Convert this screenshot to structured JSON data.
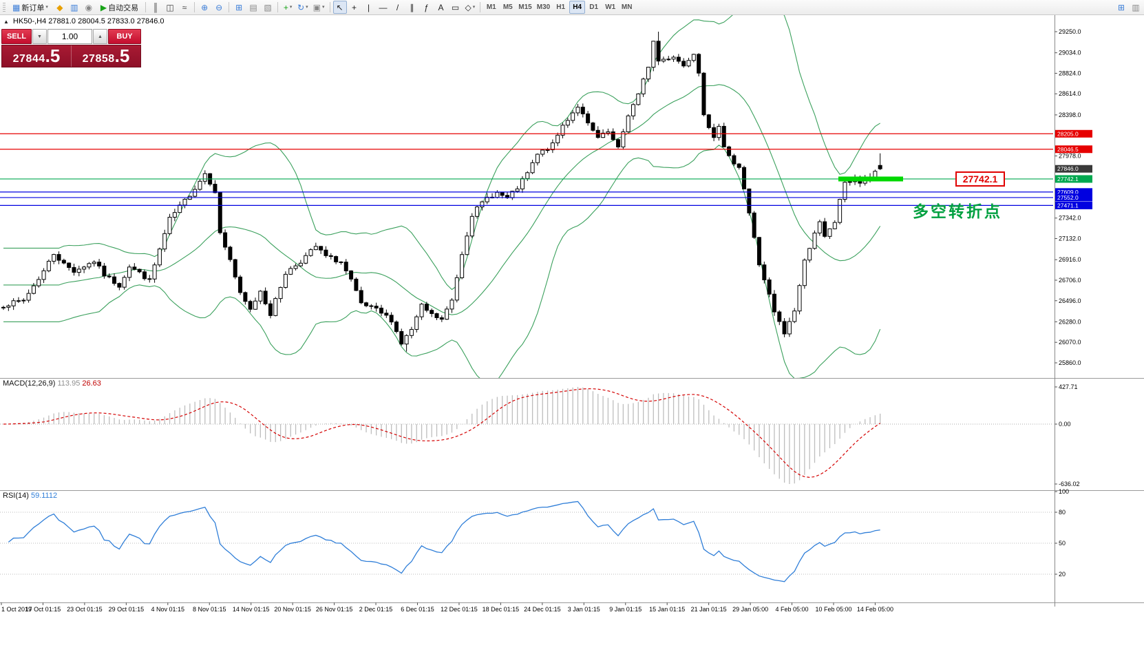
{
  "toolbar": {
    "groups": [
      {
        "items": [
          {
            "name": "new-order-button",
            "glyph": "▦",
            "color": "#3b7dd8",
            "label": "新订单",
            "dropdown": true
          },
          {
            "name": "market-button",
            "glyph": "◆",
            "color": "#e8a000"
          },
          {
            "name": "profiles-button",
            "glyph": "▥",
            "color": "#3b7dd8"
          },
          {
            "name": "data-window-button",
            "glyph": "◉",
            "color": "#888888"
          },
          {
            "name": "auto-trading-button",
            "glyph": "▶",
            "color": "#18a318",
            "label": "自动交易"
          }
        ]
      },
      {
        "items": [
          {
            "name": "bar-chart-button",
            "glyph": "║",
            "color": "#444444"
          },
          {
            "name": "candlestick-chart-button",
            "glyph": "◫",
            "color": "#444444"
          },
          {
            "name": "line-chart-button",
            "glyph": "≈",
            "color": "#444444"
          }
        ]
      },
      {
        "items": [
          {
            "name": "zoom-in-button",
            "glyph": "⊕",
            "color": "#3b7dd8"
          },
          {
            "name": "zoom-out-button",
            "glyph": "⊖",
            "color": "#3b7dd8"
          }
        ]
      },
      {
        "items": [
          {
            "name": "tile-windows-button",
            "glyph": "⊞",
            "color": "#3b7dd8"
          },
          {
            "name": "arrange-charts-button",
            "glyph": "▤",
            "color": "#888888"
          },
          {
            "name": "cascade-charts-button",
            "glyph": "▧",
            "color": "#888888"
          }
        ]
      },
      {
        "items": [
          {
            "name": "indicators-button",
            "glyph": "+",
            "color": "#18a318",
            "dropdown": true
          },
          {
            "name": "periods-button",
            "glyph": "↻",
            "color": "#3b7dd8",
            "dropdown": true
          },
          {
            "name": "templates-button",
            "glyph": "▣",
            "color": "#888888",
            "dropdown": true
          }
        ]
      },
      {
        "items": [
          {
            "name": "cursor-button",
            "glyph": "↖",
            "color": "#222222",
            "active": true
          },
          {
            "name": "crosshair-button",
            "glyph": "+",
            "color": "#222222"
          },
          {
            "name": "vertical-line-button",
            "glyph": "|",
            "color": "#222222"
          },
          {
            "name": "horizontal-line-button",
            "glyph": "—",
            "color": "#222222"
          },
          {
            "name": "trendline-button",
            "glyph": "/",
            "color": "#222222"
          },
          {
            "name": "channel-button",
            "glyph": "∥",
            "color": "#222222"
          },
          {
            "name": "fibonacci-button",
            "glyph": "ƒ",
            "color": "#222222"
          },
          {
            "name": "text-button",
            "glyph": "A",
            "color": "#222222"
          },
          {
            "name": "label-button",
            "glyph": "▭",
            "color": "#222222"
          },
          {
            "name": "shapes-button",
            "glyph": "◇",
            "color": "#222222",
            "dropdown": true
          }
        ]
      }
    ],
    "timeframes": [
      "M1",
      "M5",
      "M15",
      "M30",
      "H1",
      "H4",
      "D1",
      "W1",
      "MN"
    ],
    "active_timeframe": "H4",
    "right_items": [
      {
        "name": "new-chart-window-button",
        "glyph": "⊞",
        "color": "#3b7dd8"
      },
      {
        "name": "window-menu-button",
        "glyph": "▥",
        "color": "#888888"
      }
    ]
  },
  "symbol_info": {
    "caret": "▲",
    "text": "HK50-,H4  27881.0 28004.5 27833.0 27846.0"
  },
  "trade_panel": {
    "sell_label": "SELL",
    "buy_label": "BUY",
    "volume": "1.00",
    "sell_price_main": "27844",
    "sell_price_frac": ".5",
    "buy_price_main": "27858",
    "buy_price_frac": ".5",
    "vol_down_icon": "▼",
    "vol_up_icon": "▲"
  },
  "annotations": {
    "price_box": "27742.1",
    "turning_point": "多空转折点"
  },
  "chart_data": {
    "type": "candlestick",
    "symbol": "HK50-",
    "timeframe": "H4",
    "ohlc_current": {
      "open": 27881.0,
      "high": 28004.5,
      "low": 27833.0,
      "close": 27846.0
    },
    "bid": 27844.5,
    "ask": 27858.5,
    "candle_count": 175,
    "y_range": [
      25860,
      29250
    ],
    "y_ticks": [
      29250.0,
      29034.0,
      28824.0,
      28614.0,
      28398.0,
      27978.0,
      27342.0,
      27132.0,
      26916.0,
      26706.0,
      26496.0,
      26280.0,
      26070.0,
      25860.0
    ],
    "bollinger": {
      "period": 20,
      "deviation": 2,
      "color": "#3aa05c"
    },
    "price_anchors": [
      [
        0,
        26450
      ],
      [
        4,
        26500
      ],
      [
        8,
        26800
      ],
      [
        10,
        26980
      ],
      [
        12,
        26870
      ],
      [
        14,
        26800
      ],
      [
        18,
        26900
      ],
      [
        20,
        26760
      ],
      [
        23,
        26650
      ],
      [
        25,
        26850
      ],
      [
        27,
        26780
      ],
      [
        29,
        26700
      ],
      [
        31,
        27020
      ],
      [
        33,
        27330
      ],
      [
        36,
        27520
      ],
      [
        38,
        27650
      ],
      [
        40,
        27800
      ],
      [
        42,
        27620
      ],
      [
        43,
        27180
      ],
      [
        45,
        26920
      ],
      [
        47,
        26560
      ],
      [
        49,
        26400
      ],
      [
        51,
        26600
      ],
      [
        53,
        26360
      ],
      [
        56,
        26780
      ],
      [
        59,
        26900
      ],
      [
        62,
        27050
      ],
      [
        64,
        26950
      ],
      [
        67,
        26890
      ],
      [
        69,
        26700
      ],
      [
        71,
        26460
      ],
      [
        74,
        26400
      ],
      [
        77,
        26300
      ],
      [
        79,
        26060
      ],
      [
        81,
        26200
      ],
      [
        83,
        26440
      ],
      [
        85,
        26350
      ],
      [
        87,
        26300
      ],
      [
        89,
        26500
      ],
      [
        91,
        26980
      ],
      [
        93,
        27380
      ],
      [
        96,
        27550
      ],
      [
        98,
        27600
      ],
      [
        100,
        27540
      ],
      [
        102,
        27650
      ],
      [
        104,
        27800
      ],
      [
        106,
        27990
      ],
      [
        109,
        28090
      ],
      [
        111,
        28290
      ],
      [
        114,
        28490
      ],
      [
        116,
        28300
      ],
      [
        118,
        28160
      ],
      [
        120,
        28220
      ],
      [
        122,
        28050
      ],
      [
        124,
        28400
      ],
      [
        126,
        28600
      ],
      [
        128,
        28900
      ],
      [
        129,
        29150
      ],
      [
        130,
        28950
      ],
      [
        133,
        29000
      ],
      [
        135,
        28900
      ],
      [
        137,
        29040
      ],
      [
        138,
        28840
      ],
      [
        139,
        28420
      ],
      [
        141,
        28150
      ],
      [
        142,
        28260
      ],
      [
        143,
        28090
      ],
      [
        145,
        27900
      ],
      [
        146,
        27860
      ],
      [
        148,
        27400
      ],
      [
        149,
        27150
      ],
      [
        150,
        26850
      ],
      [
        152,
        26550
      ],
      [
        153,
        26380
      ],
      [
        155,
        26160
      ],
      [
        157,
        26400
      ],
      [
        158,
        26650
      ],
      [
        159,
        26900
      ],
      [
        161,
        27200
      ],
      [
        162,
        27290
      ],
      [
        163,
        27140
      ],
      [
        165,
        27300
      ],
      [
        166,
        27540
      ],
      [
        167,
        27690
      ],
      [
        169,
        27760
      ],
      [
        170,
        27700
      ],
      [
        171,
        27730
      ],
      [
        173,
        27800
      ],
      [
        174,
        27846
      ]
    ],
    "horizontal_lines": [
      {
        "price": 28205.0,
        "color": "#e60000"
      },
      {
        "price": 28046.5,
        "color": "#e60000"
      },
      {
        "price": 27742.1,
        "color": "#00a84f"
      },
      {
        "price": 27609.0,
        "color": "#0000e0"
      },
      {
        "price": 27552.0,
        "color": "#0000e0"
      },
      {
        "price": 27471.1,
        "color": "#0000e0"
      }
    ],
    "current_price_label": {
      "price": 27846.0,
      "bg": "#3a3a3a"
    },
    "highlight_segment": {
      "price": 27742.1,
      "color": "#00d800"
    }
  },
  "macd": {
    "label": "MACD(12,26,9)",
    "value_main": "113.95",
    "value_signal": "26.63",
    "fast": 12,
    "slow": 26,
    "signal": 9,
    "y_ticks": [
      "427.71",
      "0.00",
      "-636.02"
    ],
    "histogram_color": "#bdbdbd",
    "signal_color": "#d40000"
  },
  "rsi": {
    "label": "RSI(14)",
    "value": "59.1112",
    "period": 14,
    "levels": [
      80,
      50,
      20
    ],
    "y_ticks": [
      100,
      80,
      50,
      20
    ],
    "line_color": "#2f7ed8"
  },
  "time_axis": {
    "labels": [
      "1 Oct 2019",
      "17 Oct 01:15",
      "23 Oct 01:15",
      "29 Oct 01:15",
      "4 Nov 01:15",
      "8 Nov 01:15",
      "14 Nov 01:15",
      "20 Nov 01:15",
      "26 Nov 01:15",
      "2 Dec 01:15",
      "6 Dec 01:15",
      "12 Dec 01:15",
      "18 Dec 01:15",
      "24 Dec 01:15",
      "3 Jan 01:15",
      "9 Jan 01:15",
      "15 Jan 01:15",
      "21 Jan 01:15",
      "29 Jan 05:00",
      "4 Feb 05:00",
      "10 Feb 05:00",
      "14 Feb 05:00"
    ]
  }
}
